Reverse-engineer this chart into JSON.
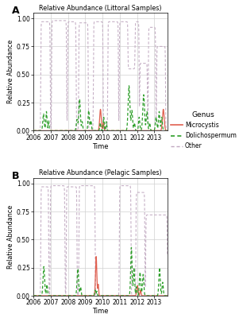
{
  "title_A": "Relative Abundance (Littoral Samples)",
  "title_B": "Relative Abundance (Pelagic Samples)",
  "xlabel": "Time",
  "ylabel": "Relative Abundance",
  "label_A": "A",
  "label_B": "B",
  "legend_title": "Genus",
  "legend_entries": [
    "Microcystis",
    "Dolichospermum",
    "Other"
  ],
  "microcystis_color": "#e06050",
  "dolichospermum_color": "#2c9e28",
  "other_color": "#c0a8c0",
  "microcystis_lw": 0.9,
  "dolichospermum_lw": 0.9,
  "other_lw": 0.8,
  "bg_color": "#ffffff",
  "grid_color": "#d0d0d0",
  "xlim_start": 2006.0,
  "xlim_end": 2013.75,
  "ylim": [
    0.0,
    1.05
  ],
  "yticks": [
    0.0,
    0.25,
    0.5,
    0.75,
    1.0
  ],
  "ytick_labels": [
    "0.00",
    "0.25",
    "0.50",
    "0.75",
    "1.00"
  ],
  "xticks": [
    2006,
    2007,
    2008,
    2009,
    2010,
    2011,
    2012,
    2013
  ]
}
